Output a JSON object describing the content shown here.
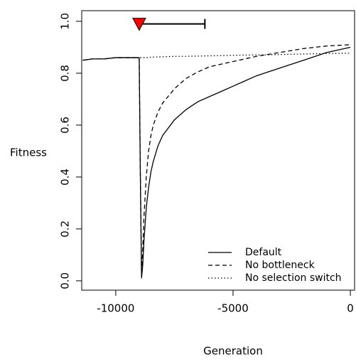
{
  "chart_data": {
    "type": "line",
    "x_label": "Generation",
    "y_label": "Fitness",
    "x": [
      -11400,
      -11000,
      -10500,
      -10000,
      -9500,
      -9100,
      -9000,
      -8950,
      -8900,
      -8850,
      -8800,
      -8700,
      -8600,
      -8500,
      -8400,
      -8200,
      -8000,
      -7500,
      -7000,
      -6500,
      -6000,
      -5500,
      -5000,
      -4500,
      -4000,
      -3000,
      -2000,
      -1000,
      0
    ],
    "series": [
      {
        "name": "Default",
        "color": "#000000",
        "linestyle": "solid",
        "values": [
          0.85,
          0.855,
          0.855,
          0.86,
          0.86,
          0.86,
          0.86,
          0.4,
          0.01,
          0.06,
          0.15,
          0.28,
          0.36,
          0.42,
          0.46,
          0.52,
          0.56,
          0.62,
          0.66,
          0.69,
          0.71,
          0.73,
          0.75,
          0.77,
          0.79,
          0.82,
          0.85,
          0.88,
          0.9
        ]
      },
      {
        "name": "No bottleneck",
        "color": "#000000",
        "linestyle": "dashed",
        "values": [
          0.85,
          0.855,
          0.855,
          0.86,
          0.86,
          0.86,
          0.86,
          0.4,
          0.02,
          0.12,
          0.24,
          0.4,
          0.5,
          0.56,
          0.6,
          0.65,
          0.685,
          0.74,
          0.78,
          0.805,
          0.825,
          0.835,
          0.845,
          0.855,
          0.865,
          0.88,
          0.895,
          0.905,
          0.91
        ]
      },
      {
        "name": "No selection switch",
        "color": "#000000",
        "linestyle": "dotted",
        "values": [
          0.85,
          0.855,
          0.855,
          0.86,
          0.86,
          0.86,
          0.86,
          0.86,
          0.86,
          0.86,
          0.86,
          0.86,
          0.86,
          0.862,
          0.862,
          0.863,
          0.863,
          0.865,
          0.865,
          0.866,
          0.867,
          0.868,
          0.869,
          0.87,
          0.87,
          0.872,
          0.874,
          0.876,
          0.877
        ]
      }
    ],
    "marker": {
      "x": -9000,
      "y": 0.99,
      "x_end": -6200,
      "color": "#ff0000"
    },
    "xlim": [
      -11450,
      180
    ],
    "xticks": [
      -10000,
      -5000,
      0
    ],
    "ylim": [
      -0.036,
      1.041
    ],
    "yticks": [
      {
        "value": 0,
        "label": "0.0"
      },
      0.2,
      0.4,
      0.6,
      0.8,
      {
        "value": 1,
        "label": "1.0"
      }
    ],
    "grid": false,
    "legend": "bottomright"
  }
}
